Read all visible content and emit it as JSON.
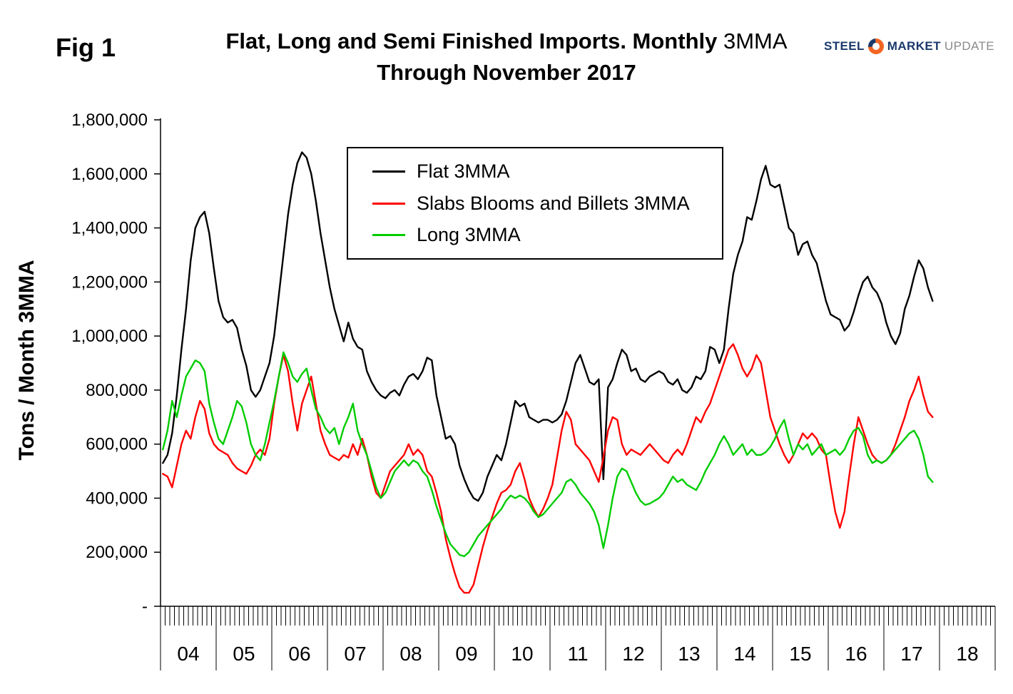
{
  "figure": {
    "fig_label": "Fig 1",
    "title_line1_bold": "Flat, Long and Semi Finished Imports. Monthly",
    "title_line1_regular": " 3MMA",
    "title_line2": "Through November 2017"
  },
  "logo": {
    "steel": "STEEL",
    "market": "MARKET",
    "update": "UPDATE",
    "navy": "#1b3a6b",
    "orange": "#f26522",
    "gray": "#8b8b8b"
  },
  "chart_data": {
    "type": "line",
    "title": "Flat, Long and Semi Finished Imports. Monthly 3MMA Through November 2017",
    "ylabel": "Tons / Month 3MMA",
    "ylim": [
      0,
      1800000
    ],
    "grid": false,
    "legend_position": "top-center-inside-plot",
    "x_start": "2004-01",
    "x_end": "2017-11",
    "points_per_year": 12,
    "ytick_values": [
      0,
      200000,
      400000,
      600000,
      800000,
      1000000,
      1200000,
      1400000,
      1600000,
      1800000
    ],
    "ytick_labels": [
      "-",
      "200,000",
      "400,000",
      "600,000",
      "800,000",
      "1,000,000",
      "1,200,000",
      "1,400,000",
      "1,600,000",
      "1,800,000"
    ],
    "x_year_labels": [
      "04",
      "05",
      "06",
      "07",
      "08",
      "09",
      "10",
      "11",
      "12",
      "13",
      "14",
      "15",
      "16",
      "17",
      "18"
    ],
    "series": [
      {
        "name": "Flat 3MMA",
        "color": "#000000",
        "values": [
          530000,
          560000,
          640000,
          780000,
          950000,
          1100000,
          1280000,
          1400000,
          1440000,
          1460000,
          1380000,
          1250000,
          1130000,
          1070000,
          1050000,
          1060000,
          1030000,
          950000,
          890000,
          800000,
          775000,
          800000,
          850000,
          900000,
          1000000,
          1150000,
          1300000,
          1450000,
          1560000,
          1640000,
          1680000,
          1660000,
          1600000,
          1500000,
          1380000,
          1280000,
          1180000,
          1100000,
          1040000,
          980000,
          1050000,
          990000,
          960000,
          950000,
          870000,
          830000,
          800000,
          780000,
          770000,
          790000,
          800000,
          780000,
          820000,
          850000,
          860000,
          840000,
          870000,
          920000,
          910000,
          780000,
          700000,
          620000,
          630000,
          600000,
          520000,
          470000,
          430000,
          400000,
          390000,
          420000,
          480000,
          520000,
          560000,
          540000,
          600000,
          680000,
          760000,
          740000,
          750000,
          700000,
          690000,
          680000,
          690000,
          690000,
          680000,
          690000,
          710000,
          760000,
          830000,
          900000,
          930000,
          880000,
          830000,
          820000,
          840000,
          470000,
          810000,
          840000,
          900000,
          950000,
          930000,
          870000,
          880000,
          840000,
          830000,
          850000,
          860000,
          870000,
          860000,
          830000,
          820000,
          840000,
          800000,
          790000,
          810000,
          850000,
          840000,
          870000,
          960000,
          950000,
          900000,
          950000,
          1100000,
          1230000,
          1300000,
          1350000,
          1440000,
          1430000,
          1500000,
          1580000,
          1630000,
          1560000,
          1550000,
          1560000,
          1480000,
          1400000,
          1380000,
          1300000,
          1340000,
          1350000,
          1300000,
          1270000,
          1200000,
          1130000,
          1080000,
          1070000,
          1060000,
          1020000,
          1040000,
          1090000,
          1150000,
          1200000,
          1220000,
          1180000,
          1160000,
          1120000,
          1050000,
          1000000,
          970000,
          1010000,
          1100000,
          1150000,
          1220000,
          1280000,
          1250000,
          1180000,
          1130000
        ]
      },
      {
        "name": "Slabs Blooms and Billets 3MMA",
        "color": "#ff0000",
        "values": [
          490000,
          480000,
          440000,
          520000,
          600000,
          650000,
          620000,
          700000,
          760000,
          730000,
          640000,
          600000,
          580000,
          570000,
          560000,
          530000,
          510000,
          500000,
          490000,
          520000,
          560000,
          580000,
          560000,
          620000,
          750000,
          850000,
          930000,
          870000,
          750000,
          650000,
          750000,
          800000,
          850000,
          750000,
          650000,
          600000,
          560000,
          550000,
          540000,
          560000,
          550000,
          600000,
          560000,
          620000,
          560000,
          480000,
          420000,
          400000,
          450000,
          500000,
          520000,
          540000,
          560000,
          600000,
          560000,
          580000,
          560000,
          500000,
          480000,
          420000,
          350000,
          250000,
          180000,
          120000,
          70000,
          50000,
          50000,
          80000,
          150000,
          220000,
          280000,
          330000,
          380000,
          420000,
          430000,
          450000,
          500000,
          530000,
          470000,
          400000,
          360000,
          330000,
          360000,
          400000,
          450000,
          550000,
          650000,
          720000,
          690000,
          600000,
          580000,
          560000,
          540000,
          500000,
          460000,
          550000,
          650000,
          700000,
          690000,
          600000,
          560000,
          580000,
          570000,
          560000,
          580000,
          600000,
          580000,
          560000,
          540000,
          530000,
          560000,
          580000,
          560000,
          600000,
          650000,
          700000,
          680000,
          720000,
          750000,
          800000,
          850000,
          900000,
          950000,
          970000,
          930000,
          880000,
          850000,
          880000,
          930000,
          900000,
          800000,
          700000,
          650000,
          600000,
          560000,
          530000,
          560000,
          600000,
          640000,
          620000,
          640000,
          620000,
          580000,
          560000,
          450000,
          350000,
          290000,
          350000,
          480000,
          600000,
          700000,
          650000,
          600000,
          560000,
          540000,
          530000,
          540000,
          560000,
          600000,
          650000,
          700000,
          760000,
          800000,
          850000,
          780000,
          720000,
          700000
        ]
      },
      {
        "name": "Long 3MMA",
        "color": "#00cc00",
        "values": [
          580000,
          650000,
          760000,
          700000,
          780000,
          850000,
          880000,
          910000,
          900000,
          870000,
          750000,
          680000,
          620000,
          600000,
          650000,
          700000,
          760000,
          740000,
          680000,
          600000,
          560000,
          540000,
          600000,
          680000,
          760000,
          850000,
          940000,
          900000,
          850000,
          830000,
          860000,
          880000,
          800000,
          730000,
          700000,
          660000,
          640000,
          660000,
          600000,
          660000,
          700000,
          750000,
          650000,
          600000,
          560000,
          500000,
          440000,
          400000,
          420000,
          460000,
          500000,
          520000,
          540000,
          520000,
          540000,
          530000,
          500000,
          480000,
          430000,
          370000,
          320000,
          270000,
          230000,
          210000,
          190000,
          185000,
          200000,
          230000,
          260000,
          280000,
          300000,
          320000,
          340000,
          360000,
          390000,
          410000,
          400000,
          410000,
          400000,
          380000,
          350000,
          330000,
          340000,
          360000,
          380000,
          400000,
          420000,
          460000,
          470000,
          450000,
          420000,
          400000,
          380000,
          350000,
          300000,
          215000,
          300000,
          400000,
          480000,
          510000,
          500000,
          460000,
          420000,
          390000,
          375000,
          380000,
          390000,
          400000,
          420000,
          450000,
          480000,
          460000,
          470000,
          450000,
          440000,
          430000,
          460000,
          500000,
          530000,
          560000,
          600000,
          630000,
          600000,
          560000,
          580000,
          600000,
          560000,
          580000,
          560000,
          560000,
          570000,
          590000,
          620000,
          660000,
          690000,
          620000,
          560000,
          600000,
          580000,
          600000,
          560000,
          580000,
          600000,
          560000,
          570000,
          580000,
          560000,
          580000,
          620000,
          650000,
          660000,
          630000,
          560000,
          530000,
          540000,
          530000,
          540000,
          560000,
          580000,
          600000,
          620000,
          640000,
          650000,
          620000,
          560000,
          480000,
          460000
        ]
      }
    ]
  }
}
